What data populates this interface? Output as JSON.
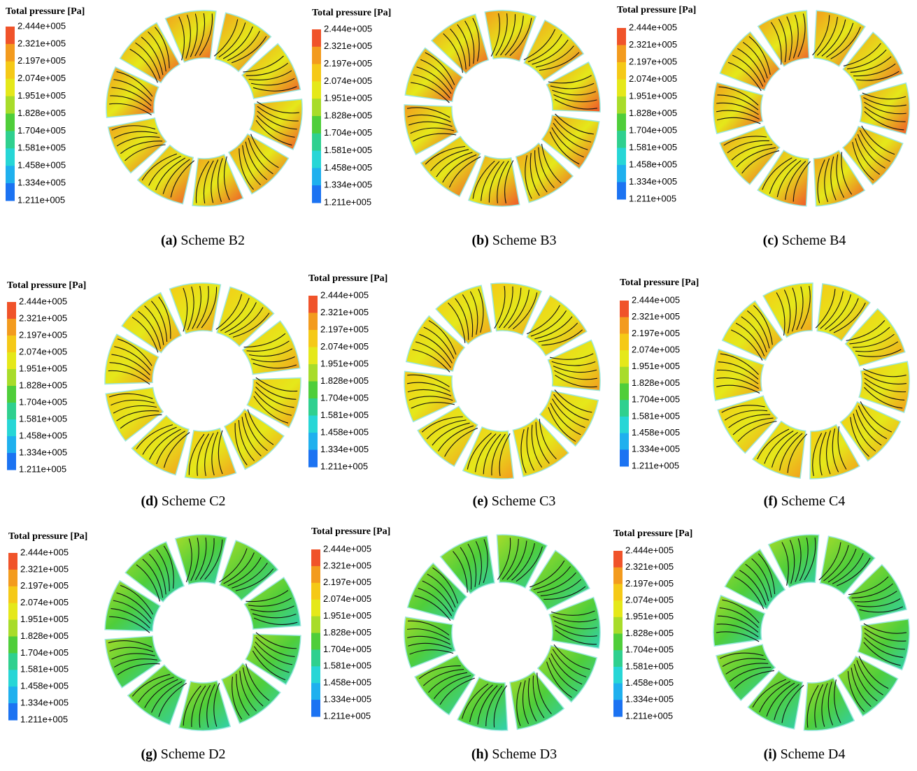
{
  "legend": {
    "title": "Total pressure [Pa]",
    "levels": [
      "2.444e+005",
      "2.321e+005",
      "2.197e+005",
      "2.074e+005",
      "1.951e+005",
      "1.828e+005",
      "1.704e+005",
      "1.581e+005",
      "1.458e+005",
      "1.334e+005",
      "1.211e+005"
    ]
  },
  "panels": [
    {
      "label": "(a)",
      "caption": "Scheme B2"
    },
    {
      "label": "(b)",
      "caption": "Scheme B3"
    },
    {
      "label": "(c)",
      "caption": "Scheme B4"
    },
    {
      "label": "(d)",
      "caption": "Scheme C2"
    },
    {
      "label": "(e)",
      "caption": "Scheme C3"
    },
    {
      "label": "(f)",
      "caption": "Scheme C4"
    },
    {
      "label": "(g)",
      "caption": "Scheme D2"
    },
    {
      "label": "(h)",
      "caption": "Scheme D3"
    },
    {
      "label": "(i)",
      "caption": "Scheme D4"
    }
  ]
}
